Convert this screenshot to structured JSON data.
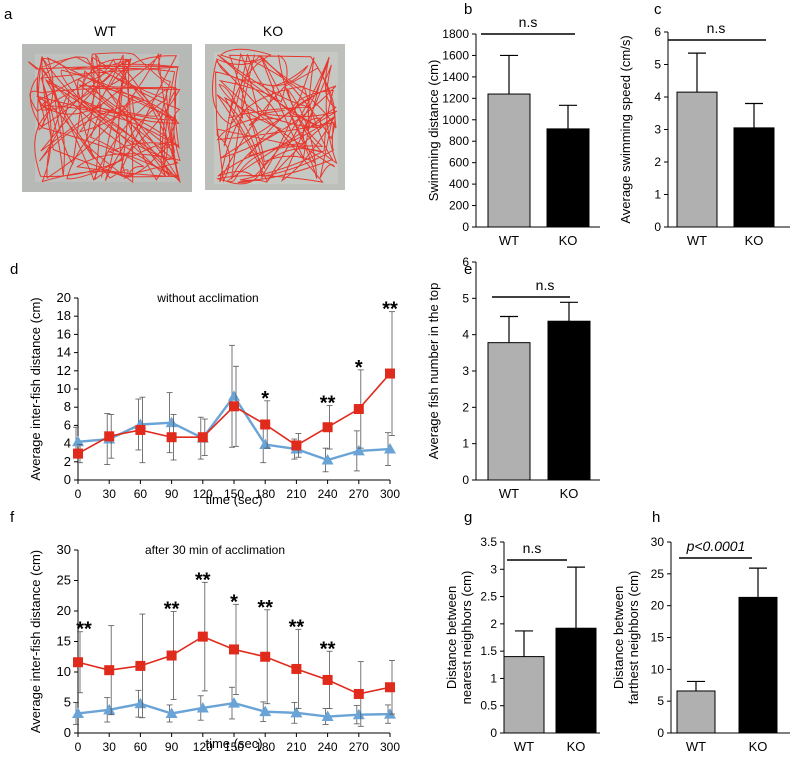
{
  "panels": {
    "a": {
      "letter": "a",
      "images": [
        {
          "label": "WT",
          "tank_color": "#b6b9b6",
          "trace_color": "#e8372d"
        },
        {
          "label": "KO",
          "tank_color": "#bdbfbb",
          "trace_color": "#e8372d"
        }
      ]
    }
  },
  "colors": {
    "wt_bar": "#b0b0b0",
    "ko_bar": "#000000",
    "wt_line": "#6aa3d5",
    "ko_line": "#e02a1c"
  },
  "chart_data": [
    {
      "id": "b",
      "letter": "b",
      "type": "bar",
      "categories": [
        "WT",
        "KO"
      ],
      "values": [
        1240,
        915
      ],
      "errors": [
        360,
        220
      ],
      "ylabel": "Swimming distance (cm)",
      "ylim": [
        0,
        1800
      ],
      "yticks": [
        "0",
        "200",
        "400",
        "600",
        "800",
        "1000",
        "1200",
        "1400",
        "1600",
        "1800"
      ],
      "significance": "n.s"
    },
    {
      "id": "c",
      "letter": "c",
      "type": "bar",
      "categories": [
        "WT",
        "KO"
      ],
      "values": [
        4.15,
        3.05
      ],
      "errors": [
        1.2,
        0.75
      ],
      "ylabel": "Average swimming speed (cm/s)",
      "ylim": [
        0,
        6
      ],
      "yticks": [
        "0",
        "1",
        "2",
        "3",
        "4",
        "5",
        "6"
      ],
      "significance": "n.s"
    },
    {
      "id": "d",
      "letter": "d",
      "type": "line",
      "title": "without acclimation",
      "x": [
        0,
        30,
        60,
        90,
        120,
        150,
        180,
        210,
        240,
        270,
        300
      ],
      "xticks": [
        "0",
        "30",
        "60",
        "90",
        "120",
        "150",
        "180",
        "210",
        "240",
        "270",
        "300"
      ],
      "xlabel": "time (sec)",
      "ylabel": "Average inter-fish distance (cm)",
      "ylim": [
        0,
        20
      ],
      "yticks": [
        "0",
        "2",
        "4",
        "6",
        "8",
        "10",
        "12",
        "14",
        "16",
        "18",
        "20"
      ],
      "series": [
        {
          "key": "wt",
          "marker": "triangle",
          "values": [
            4.2,
            4.5,
            6.1,
            6.3,
            4.6,
            9.2,
            3.9,
            3.4,
            2.2,
            3.2,
            3.4
          ],
          "errors": [
            1.6,
            2.8,
            2.8,
            3.3,
            2.3,
            5.6,
            2.0,
            1.1,
            1.3,
            2.2,
            1.8
          ]
        },
        {
          "key": "ko",
          "marker": "square",
          "values": [
            2.9,
            4.8,
            5.5,
            4.7,
            4.7,
            8.1,
            6.1,
            3.8,
            5.8,
            7.8,
            11.7
          ],
          "errors": [
            1.0,
            2.4,
            3.6,
            2.5,
            2.0,
            4.4,
            2.6,
            1.3,
            2.4,
            4.3,
            6.8
          ]
        }
      ],
      "annotations": [
        {
          "x": 180,
          "text": "*"
        },
        {
          "x": 240,
          "text": "**"
        },
        {
          "x": 270,
          "text": "*"
        },
        {
          "x": 300,
          "text": "**"
        }
      ]
    },
    {
      "id": "e",
      "letter": "e",
      "type": "bar",
      "categories": [
        "WT",
        "KO"
      ],
      "values": [
        3.78,
        4.37
      ],
      "errors": [
        0.72,
        0.52
      ],
      "ylabel": "Average fish number  in the top",
      "ylim": [
        0,
        6
      ],
      "yticks": [
        "0",
        "1",
        "2",
        "3",
        "4",
        "5",
        "6"
      ],
      "significance": "n.s"
    },
    {
      "id": "f",
      "letter": "f",
      "type": "line",
      "title": "after 30 min of acclimation",
      "x": [
        0,
        30,
        60,
        90,
        120,
        150,
        180,
        210,
        240,
        270,
        300
      ],
      "xticks": [
        "0",
        "30",
        "60",
        "90",
        "120",
        "150",
        "180",
        "210",
        "240",
        "270",
        "300"
      ],
      "xlabel": "time (sec)",
      "ylabel": "Average inter-fish distance (cm)",
      "ylim": [
        0,
        30
      ],
      "yticks": [
        "0",
        "5",
        "10",
        "15",
        "20",
        "25",
        "30"
      ],
      "series": [
        {
          "key": "wt",
          "marker": "triangle",
          "values": [
            3.2,
            3.8,
            4.8,
            3.2,
            4.1,
            4.9,
            3.5,
            3.3,
            2.7,
            3.0,
            3.1
          ],
          "errors": [
            1.8,
            2.0,
            2.2,
            1.4,
            2.0,
            2.6,
            1.6,
            1.7,
            1.3,
            1.5,
            1.5
          ]
        },
        {
          "key": "ko",
          "marker": "square",
          "values": [
            11.6,
            10.3,
            11.0,
            12.7,
            15.8,
            13.7,
            12.5,
            10.5,
            8.7,
            6.4,
            7.5
          ],
          "errors": [
            5.0,
            7.3,
            8.5,
            7.2,
            8.9,
            7.4,
            7.7,
            6.5,
            4.7,
            5.3,
            4.4
          ]
        }
      ],
      "annotations": [
        {
          "x": 0,
          "text": "**"
        },
        {
          "x": 90,
          "text": "**"
        },
        {
          "x": 120,
          "text": "**"
        },
        {
          "x": 150,
          "text": "*"
        },
        {
          "x": 180,
          "text": "**"
        },
        {
          "x": 210,
          "text": "**"
        },
        {
          "x": 240,
          "text": "**"
        }
      ]
    },
    {
      "id": "g",
      "letter": "g",
      "type": "bar",
      "categories": [
        "WT",
        "KO"
      ],
      "values": [
        1.4,
        1.92
      ],
      "errors": [
        0.47,
        1.12
      ],
      "ylabel": [
        "Distance between",
        "nearest neighbors (cm)"
      ],
      "ylim": [
        0,
        3.5
      ],
      "yticks": [
        "0",
        "0.5",
        "1",
        "1.5",
        "2",
        "2.5",
        "3",
        "3.5"
      ],
      "significance": "n.s"
    },
    {
      "id": "h",
      "letter": "h",
      "type": "bar",
      "categories": [
        "WT",
        "KO"
      ],
      "values": [
        6.6,
        21.3
      ],
      "errors": [
        1.5,
        4.6
      ],
      "ylabel": [
        "Distance between",
        "farthest neighbors (cm)"
      ],
      "ylim": [
        0,
        30
      ],
      "yticks": [
        "0",
        "5",
        "10",
        "15",
        "20",
        "25",
        "30"
      ],
      "significance": "p<0.0001"
    }
  ]
}
